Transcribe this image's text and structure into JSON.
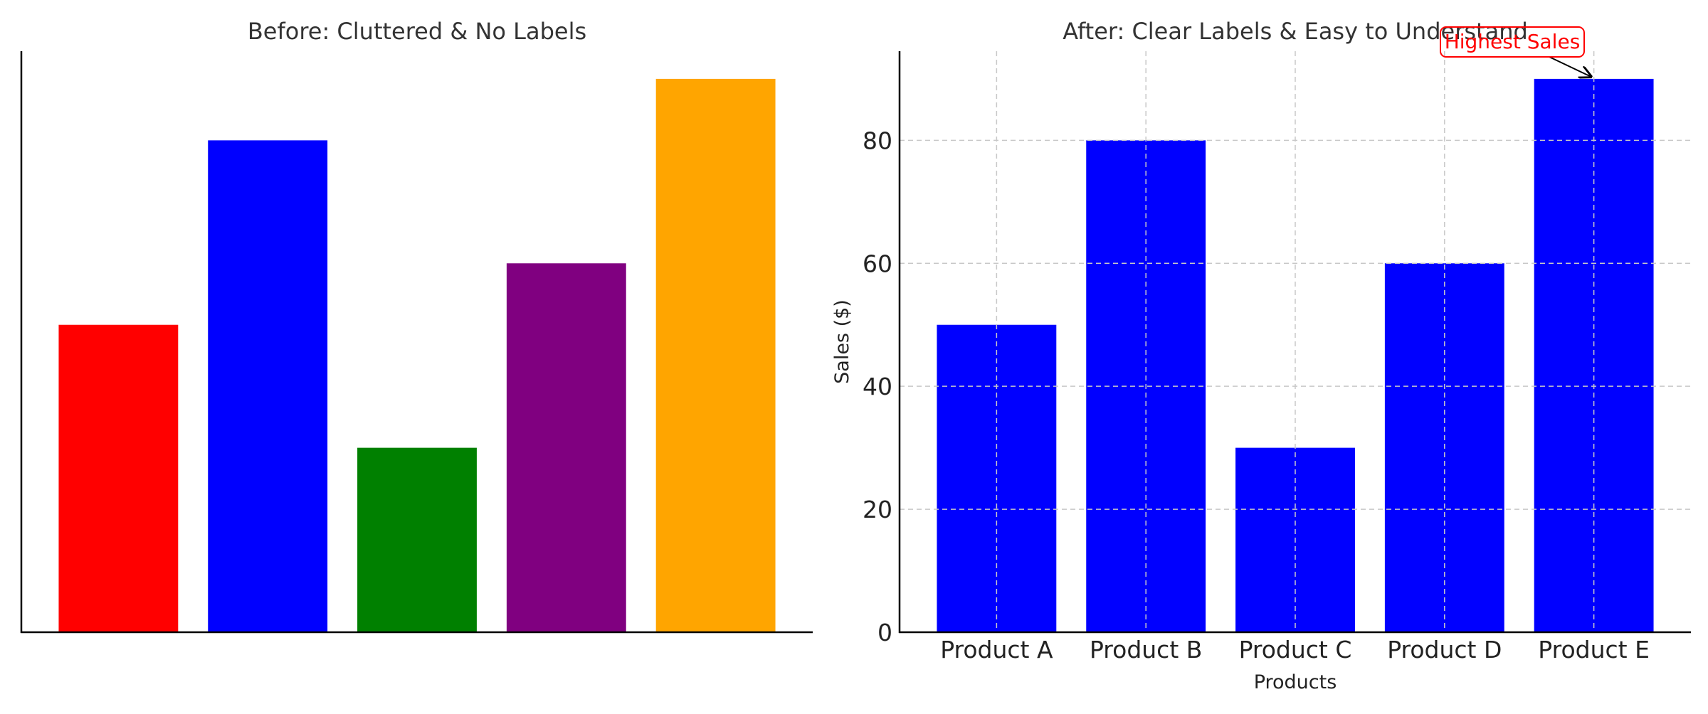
{
  "chart_data": [
    {
      "type": "bar",
      "title": "Before: Cluttered & No Labels",
      "categories": [
        "",
        "",
        "",
        "",
        ""
      ],
      "values": [
        50,
        80,
        30,
        60,
        90
      ],
      "colors": [
        "#ff0000",
        "#0000ff",
        "#008000",
        "#800080",
        "#ffa500"
      ],
      "xlabel": "",
      "ylabel": "",
      "ylim": [
        0,
        94.5
      ],
      "grid": false,
      "show_ticks": false
    },
    {
      "type": "bar",
      "title": "After: Clear Labels & Easy to Understand",
      "categories": [
        "Product A",
        "Product B",
        "Product C",
        "Product D",
        "Product E"
      ],
      "values": [
        50,
        80,
        30,
        60,
        90
      ],
      "colors": [
        "#0000ff",
        "#0000ff",
        "#0000ff",
        "#0000ff",
        "#0000ff"
      ],
      "xlabel": "Products",
      "ylabel": "Sales ($)",
      "ylim": [
        0,
        94.5
      ],
      "yticks": [
        0,
        20,
        40,
        60,
        80
      ],
      "grid": true,
      "show_ticks": true,
      "annotation": {
        "text": "Highest Sales",
        "target_category": "Product E",
        "target_value": 90,
        "color": "#ff0000"
      }
    }
  ]
}
